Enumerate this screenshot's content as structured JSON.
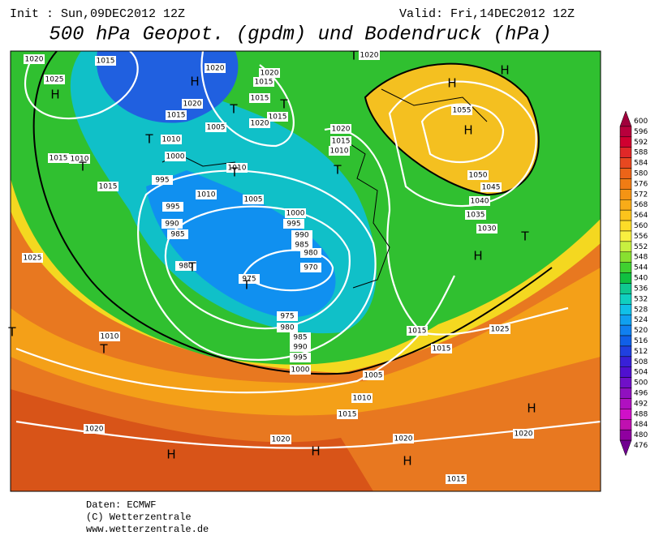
{
  "header": {
    "init": "Init : Sun,09DEC2012 12Z",
    "valid": "Valid: Fri,14DEC2012 12Z",
    "title": "500 hPa Geopot. (gpdm) und Bodendruck (hPa)"
  },
  "colorbar": {
    "labels": [
      "600",
      "596",
      "592",
      "588",
      "584",
      "580",
      "576",
      "572",
      "568",
      "564",
      "560",
      "556",
      "552",
      "548",
      "544",
      "540",
      "536",
      "532",
      "528",
      "524",
      "520",
      "516",
      "512",
      "508",
      "504",
      "500",
      "496",
      "492",
      "488",
      "484",
      "480",
      "476"
    ],
    "colors": [
      "#a0003c",
      "#b8003c",
      "#d00030",
      "#e02828",
      "#e84820",
      "#ec6418",
      "#f07c14",
      "#f49414",
      "#f8ac18",
      "#fcc41c",
      "#fcdc28",
      "#f8f040",
      "#c8f040",
      "#88e030",
      "#40d030",
      "#10c040",
      "#10c890",
      "#10d0c0",
      "#10c0e8",
      "#10a0f0",
      "#1080f0",
      "#1060e8",
      "#2040e0",
      "#3820d8",
      "#5010d0",
      "#7010c8",
      "#9010c0",
      "#b010c0",
      "#d010c8",
      "#c010b0",
      "#9000a0",
      "#700090"
    ]
  },
  "map": {
    "pressure_labels": [
      "1020",
      "1015",
      "1020",
      "1025",
      "1020",
      "1015",
      "1020",
      "1015",
      "1015",
      "1015",
      "1020",
      "1005",
      "1010",
      "1020",
      "1015",
      "1010",
      "1015",
      "1010",
      "1000",
      "1010",
      "995",
      "1010",
      "1005",
      "1015",
      "995",
      "1000",
      "995",
      "990",
      "985",
      "990",
      "985",
      "980",
      "980",
      "970",
      "975",
      "975",
      "980",
      "985",
      "990",
      "995",
      "1000",
      "1025",
      "1010",
      "1015",
      "1015",
      "1005",
      "1010",
      "1015",
      "1020",
      "1020",
      "1020",
      "1020",
      "1015",
      "1055",
      "1050",
      "1045",
      "1040",
      "1035",
      "1030",
      "1025",
      "1020"
    ],
    "centers": [
      "H",
      "H",
      "H",
      "H",
      "H",
      "H",
      "H",
      "H",
      "H",
      "H",
      "T",
      "T",
      "T",
      "T",
      "T",
      "T",
      "T",
      "T",
      "T",
      "T",
      "T",
      "T"
    ]
  },
  "footer": {
    "source": "Daten: ECMWF",
    "copyright": "(C) Wetterzentrale",
    "url": "www.wetterzentrale.de"
  }
}
